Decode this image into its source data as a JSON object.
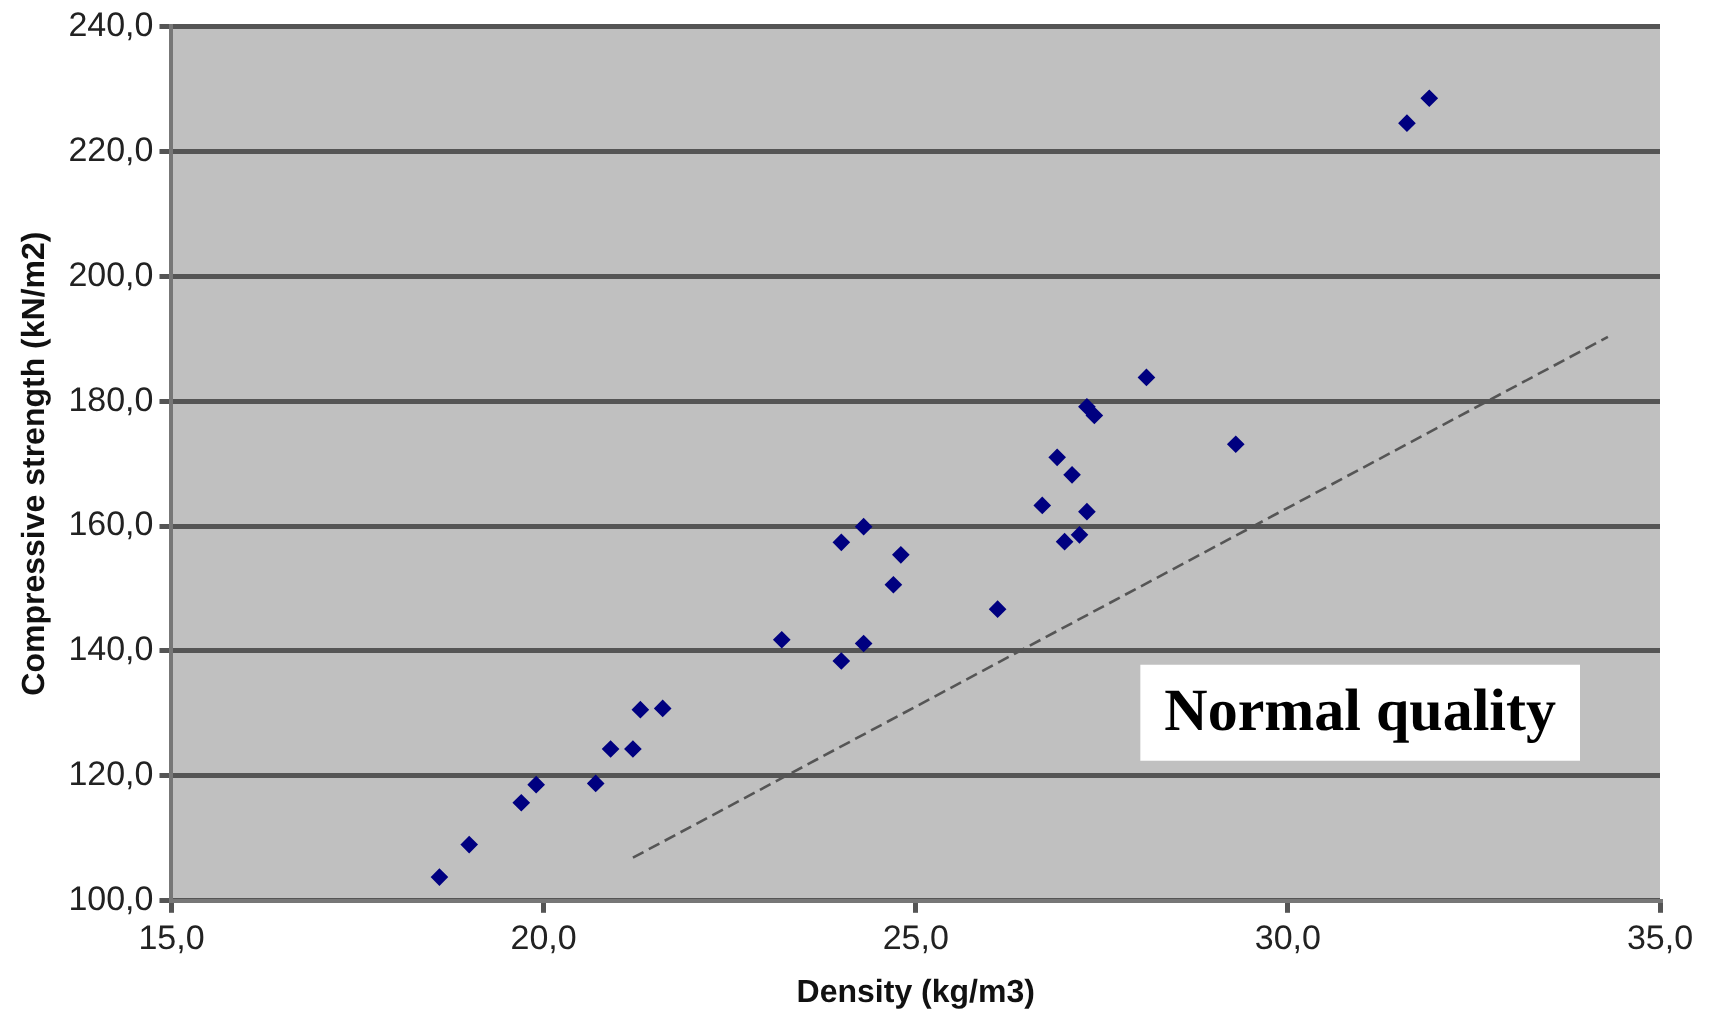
{
  "chart_data": {
    "type": "scatter",
    "xlabel": "Density (kg/m3)",
    "ylabel": "Compressive strength (kN/m2)",
    "annotations": [
      "Normal quality"
    ],
    "xlim": [
      15,
      35
    ],
    "xticks": [
      {
        "value": 15,
        "label": "15,0"
      },
      {
        "value": 20,
        "label": "20,0"
      },
      {
        "value": 25,
        "label": "25,0"
      },
      {
        "value": 30,
        "label": "30,0"
      },
      {
        "value": 35,
        "label": "35,0"
      }
    ],
    "ylim": [
      100,
      240
    ],
    "yticks": [
      {
        "value": 100,
        "label": "100,0"
      },
      {
        "value": 120,
        "label": "120,0"
      },
      {
        "value": 140,
        "label": "140,0"
      },
      {
        "value": 160,
        "label": "160,0"
      },
      {
        "value": 180,
        "label": "180,0"
      },
      {
        "value": 200,
        "label": "200,0"
      },
      {
        "value": 220,
        "label": "220,0"
      },
      {
        "value": 240,
        "label": "240,0"
      }
    ],
    "grid": "y",
    "legend": false,
    "series": [
      {
        "type": "scatter",
        "color": "#000080",
        "marker": "diamond",
        "x": [
          18.6,
          19.0,
          19.7,
          19.9,
          20.7,
          20.9,
          21.2,
          21.3,
          21.6,
          23.2,
          24.0,
          24.3,
          24.7,
          24.8,
          24.0,
          24.3,
          26.1,
          26.7,
          26.9,
          27.1,
          27.0,
          27.2,
          27.3,
          27.3,
          27.4,
          28.1,
          29.3,
          31.6,
          31.9
        ],
        "values": [
          103.8,
          109,
          115.7,
          118.6,
          118.8,
          124.3,
          124.3,
          130.6,
          130.8,
          141.8,
          138.4,
          141.2,
          150.6,
          155.4,
          157.4,
          159.9,
          146.7,
          163.3,
          171.0,
          168.2,
          157.5,
          158.6,
          162.3,
          179.1,
          177.7,
          183.8,
          173.1,
          224.5,
          228.5
        ]
      },
      {
        "type": "line",
        "color": "#555555",
        "marker": "none",
        "line_style": "dashed",
        "x": [
          21.2,
          34.3
        ],
        "values": [
          106.9,
          190.3
        ]
      }
    ]
  }
}
